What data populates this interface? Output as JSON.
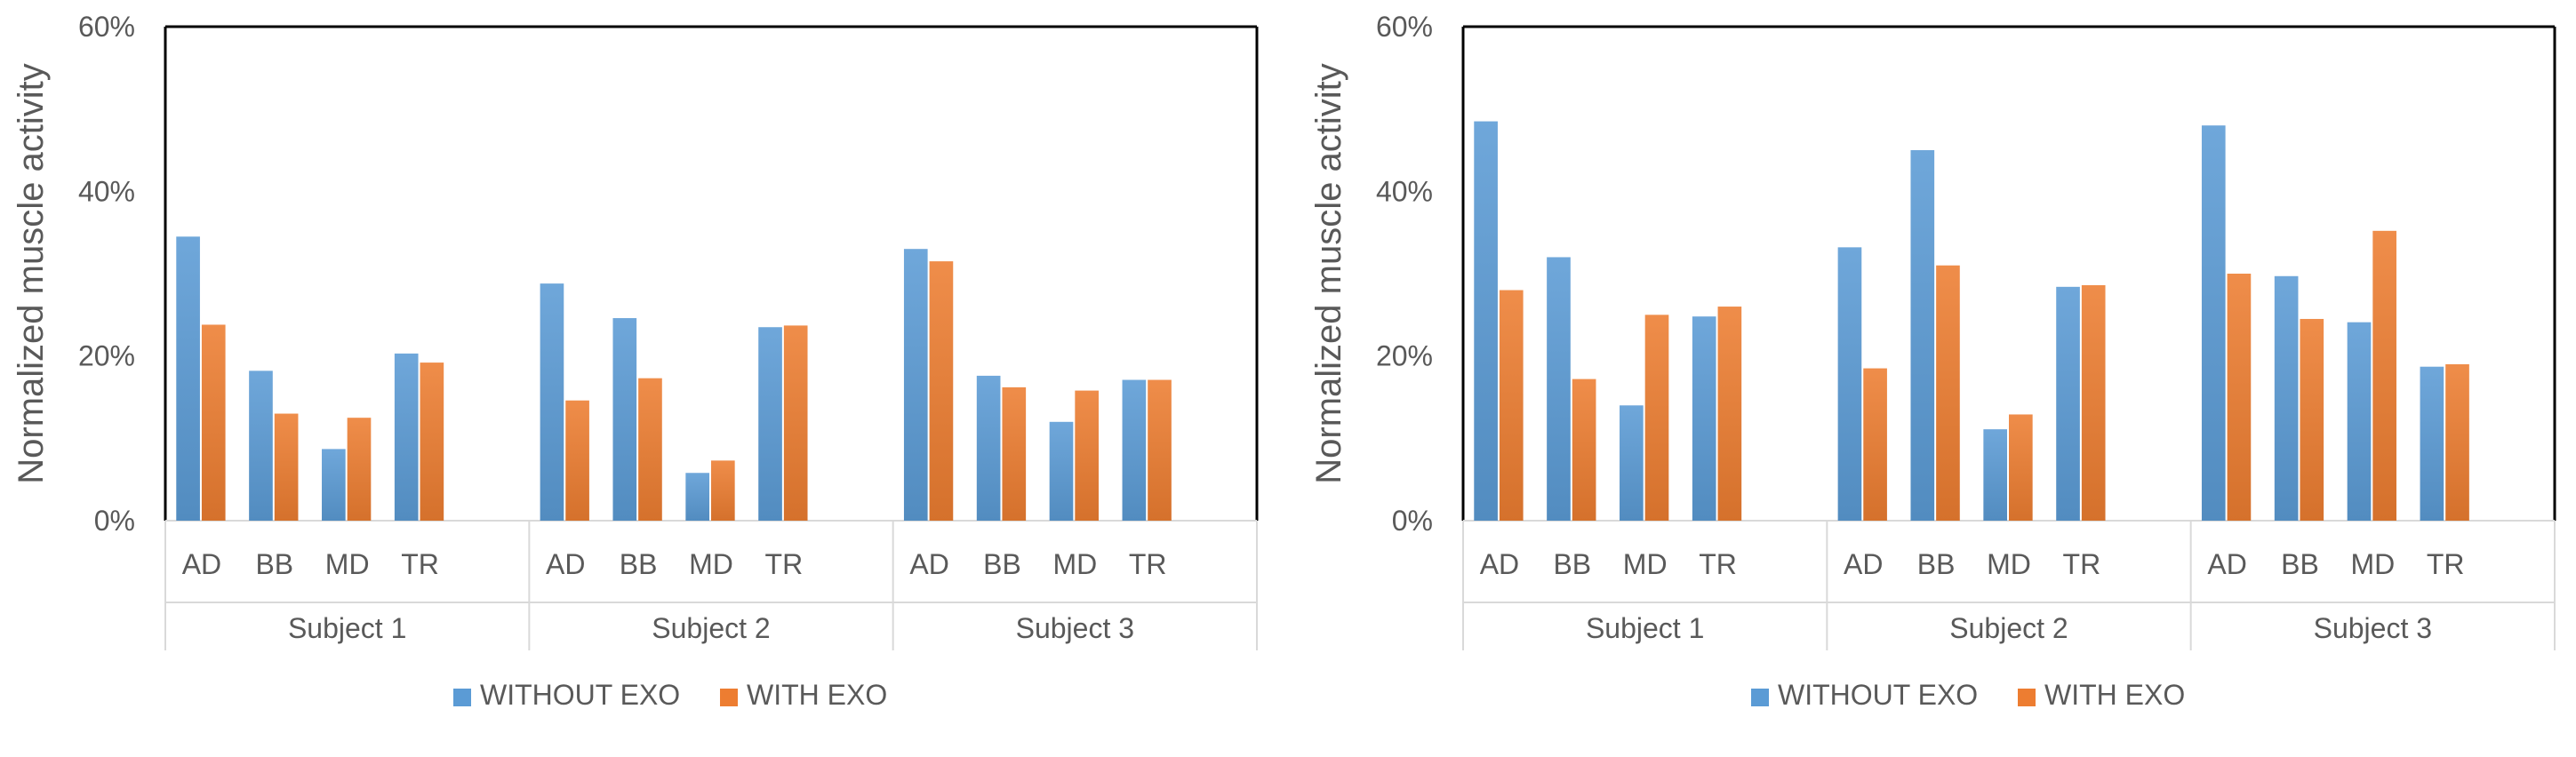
{
  "chart_data": [
    {
      "type": "bar",
      "title": "",
      "ylabel": "Normalized muscle activity",
      "xlabel": "",
      "ylim": [
        0,
        60
      ],
      "y_ticks": [
        0,
        20,
        40,
        60
      ],
      "y_tick_labels": [
        "0%",
        "20%",
        "40%",
        "60%"
      ],
      "groups": [
        "Subject 1",
        "Subject 2",
        "Subject 3"
      ],
      "categories": [
        "AD",
        "BB",
        "MD",
        "TR"
      ],
      "legend_position": "bottom-center",
      "series": [
        {
          "name": "WITHOUT EXO",
          "color": "#5B9BD5",
          "values": [
            [
              34.5,
              18.2,
              8.7,
              20.3
            ],
            [
              28.8,
              24.6,
              5.8,
              23.5
            ],
            [
              33.0,
              17.6,
              12.0,
              17.1
            ]
          ]
        },
        {
          "name": "WITH EXO",
          "color": "#ED7D31",
          "values": [
            [
              23.8,
              13.0,
              12.5,
              19.2
            ],
            [
              14.6,
              17.3,
              7.3,
              23.7
            ],
            [
              31.5,
              16.2,
              15.8,
              17.1
            ]
          ]
        }
      ]
    },
    {
      "type": "bar",
      "title": "",
      "ylabel": "Normalized muscle activity",
      "xlabel": "",
      "ylim": [
        0,
        60
      ],
      "y_ticks": [
        0,
        20,
        40,
        60
      ],
      "y_tick_labels": [
        "0%",
        "20%",
        "40%",
        "60%"
      ],
      "groups": [
        "Subject 1",
        "Subject 2",
        "Subject 3"
      ],
      "categories": [
        "AD",
        "BB",
        "MD",
        "TR"
      ],
      "legend_position": "bottom-center",
      "series": [
        {
          "name": "WITHOUT EXO",
          "color": "#5B9BD5",
          "values": [
            [
              48.5,
              32.0,
              14.0,
              24.8
            ],
            [
              33.2,
              45.0,
              11.1,
              28.4
            ],
            [
              48.0,
              29.7,
              24.1,
              18.7
            ]
          ]
        },
        {
          "name": "WITH EXO",
          "color": "#ED7D31",
          "values": [
            [
              28.0,
              17.2,
              25.0,
              26.0
            ],
            [
              18.5,
              31.0,
              12.9,
              28.6
            ],
            [
              30.0,
              24.5,
              35.2,
              19.0
            ]
          ]
        }
      ]
    }
  ]
}
